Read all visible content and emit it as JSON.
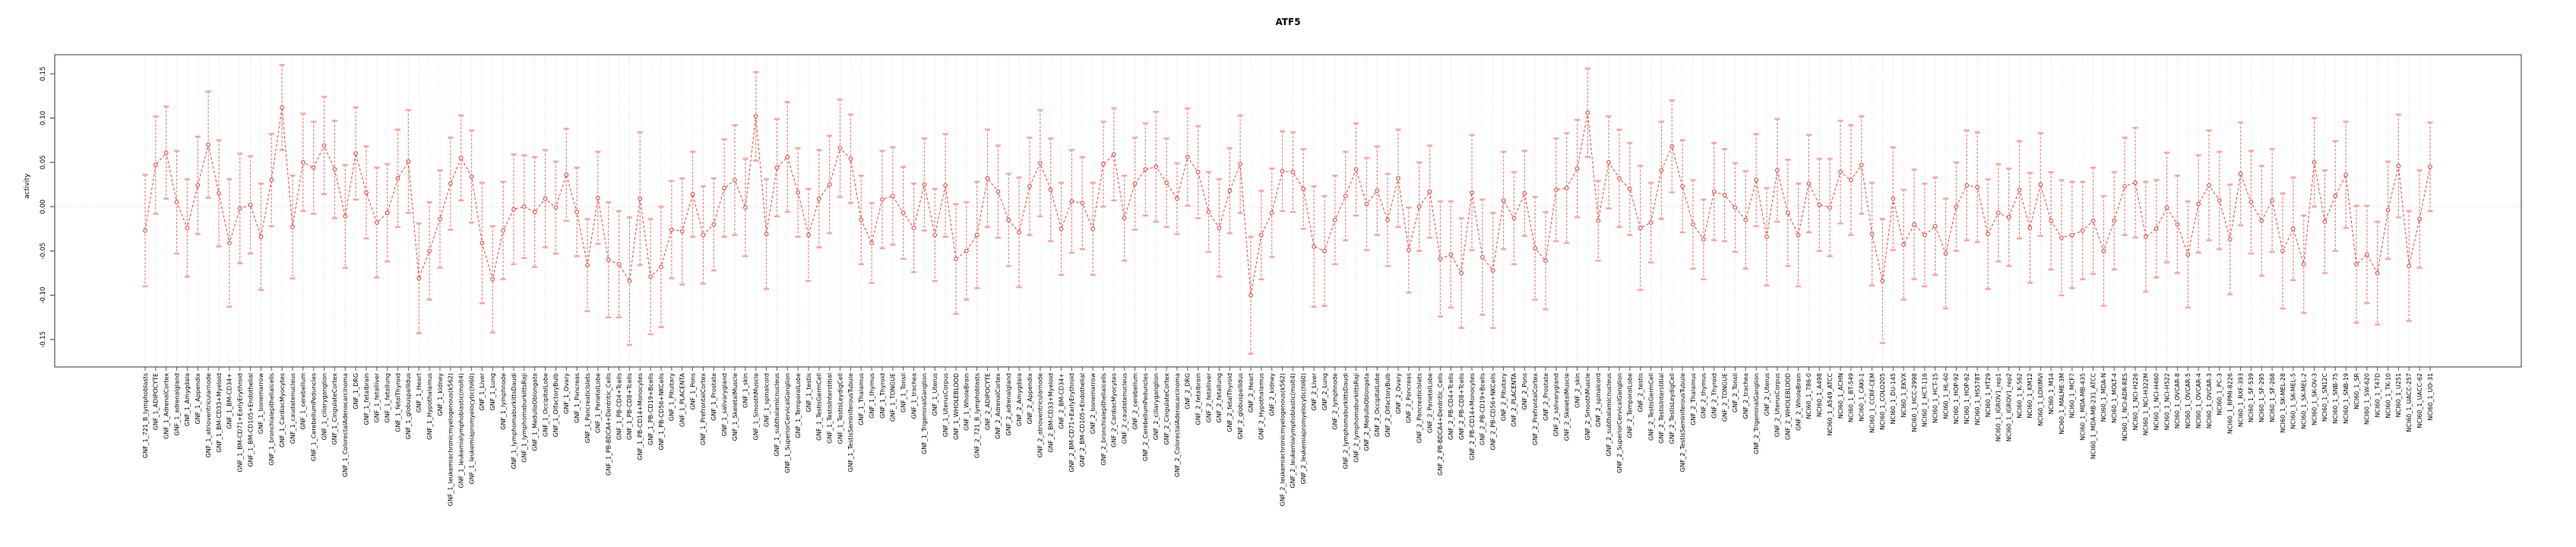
{
  "title": "ATF5",
  "colors": {
    "line": "#e8463c",
    "error_stem": "#f0837c",
    "error_cap": "#f4a7a3",
    "grid": "#d9d9d9",
    "zero_line": "#cccccc",
    "box": "#555555",
    "text": "#000000"
  },
  "chart_data": {
    "type": "line",
    "subtype": "errorbar-series",
    "title": "ATF5",
    "xlabel": "",
    "ylabel": "activity",
    "ylim": [
      -0.181,
      0.171
    ],
    "yticks": [
      0.15,
      0.1,
      0.05,
      0.0,
      -0.05,
      -0.1,
      -0.15
    ],
    "ytick_labels": [
      "0.15",
      "0.10",
      "0.05",
      "0.00",
      "-0.05",
      "-0.10",
      "-0.15"
    ],
    "grid": "vertical dotted gridline per sample; horizontal dotted line at 0",
    "legend": null,
    "marker": "open-circle",
    "line_style": "dashed",
    "categories": [
      "GNF_1_721_B_lymphoblasts",
      "GNF_1_ADIPOCYTE",
      "GNF_1_AdrenalCortex",
      "GNF_1_adrenalgland",
      "GNF_1_Amygdala",
      "GNF_1_Appendix",
      "GNF_1_atrioventricularnode",
      "GNF_1_BM-CD33+Myeloid",
      "GNF_1_BM-CD34+",
      "GNF_1_BM-CD71+EarlyErythroid",
      "GNF_1_BM-CD105+Endothelial",
      "GNF_1_bonemarrow",
      "GNF_1_bronchialepithelialcells",
      "GNF_1_CardiacMyocytes",
      "GNF_1_caudatenucleus",
      "GNF_1_cerebellum",
      "GNF_1_CerebellumPeduncles",
      "GNF_1_ciliaryganglion",
      "GNF_1_CingulateCortex",
      "GNF_1_ColorectalAdenocarcinoma",
      "GNF_1_DRG",
      "GNF_1_fetalbrain",
      "GNF_1_fetalliver",
      "GNF_1_fetallung",
      "GNF_1_fetalThyroid",
      "GNF_1_globuspallidus",
      "GNF_1_Heart",
      "GNF_1_Hypothalamus",
      "GNF_1_kidney",
      "GNF_1_leukemiachronicmyelogenous(k562)",
      "GNF_1_leukemialymphoblastic(molt4)",
      "GNF_1_leukemiapromyelocytic(hl60)",
      "GNF_1_Liver",
      "GNF_1_Lung",
      "GNF_1_lymphnode",
      "GNF_1_lymphomaburkittsDaudi",
      "GNF_1_lymphomaburkittsRaji",
      "GNF_1_MedullaOblongata",
      "GNF_1_OccipitalLobe",
      "GNF_1_OlfactoryBulb",
      "GNF_1_Ovary",
      "GNF_1_Pancreas",
      "GNF_1_PancreaticIslets",
      "GNF_1_ParietalLobe",
      "GNF_1_PB-BDCA4+Dentritic_Cells",
      "GNF_1_PB-CD4+Tcells",
      "GNF_1_PB-CD8+Tcells",
      "GNF_1_PB-CD14+Monocytes",
      "GNF_1_PB-CD19+Bcells",
      "GNF_1_PB-CD56+NKCells",
      "GNF_1_Pituitary",
      "GNF_1_PLACENTA",
      "GNF_1_Pons",
      "GNF_1_PrefrontalCortex",
      "GNF_1_Prostate",
      "GNF_1_salivarygland",
      "GNF_1_SkeletalMuscle",
      "GNF_1_skin",
      "GNF_1_SmoothMuscle",
      "GNF_1_spinalcord",
      "GNF_1_subthalamicnucleus",
      "GNF_1_SuperiorCervicalGanglion",
      "GNF_1_TemporalLobe",
      "GNF_1_testis",
      "GNF_1_TestisGermCell",
      "GNF_1_TestisInterstitial",
      "GNF_1_TestisLeydigCell",
      "GNF_1_TestisSeminiferousTubule",
      "GNF_1_Thalamus",
      "GNF_1_thymus",
      "GNF_1_Thyroid",
      "GNF_1_TONGUE",
      "GNF_1_Tonsil",
      "GNF_1_trachea",
      "GNF_1_TrigeminalGanglion",
      "GNF_1_Uterus",
      "GNF_1_UterusCorpus",
      "GNF_1_WHOLEBLOOD",
      "GNF_1_WholeBrain",
      "GNF_2_721_B_lymphoblasts",
      "GNF_2_ADIPOCYTE",
      "GNF_2_AdrenalCortex",
      "GNF_2_adrenalgland",
      "GNF_2_Amygdala",
      "GNF_2_Appendix",
      "GNF_2_atrioventricularnode",
      "GNF_2_BM-CD33+Myeloid",
      "GNF_2_BM-CD34+",
      "GNF_2_BM-CD71+EarlyErythroid",
      "GNF_2_BM-CD105+Endothelial",
      "GNF_2_bonemarrow",
      "GNF_2_bronchialepithelialcells",
      "GNF_2_CardiacMyocytes",
      "GNF_2_caudatenucleus",
      "GNF_2_cerebellum",
      "GNF_2_CerebellumPeduncles",
      "GNF_2_ciliaryganglion",
      "GNF_2_CingulateCortex",
      "GNF_2_ColorectalAdenocarcinoma",
      "GNF_2_DRG",
      "GNF_2_fetalbrain",
      "GNF_2_fetalliver",
      "GNF_2_fetallung",
      "GNF_2_fetalThyroid",
      "GNF_2_globuspallidus",
      "GNF_2_Heart",
      "GNF_2_Hypothalamus",
      "GNF_2_kidney",
      "GNF_2_leukemiachronicmyelogenous(k562)",
      "GNF_2_leukemialymphoblastic(molt4)",
      "GNF_2_leukemiapromyelocytic(hl60)",
      "GNF_2_Liver",
      "GNF_2_Lung",
      "GNF_2_lymphnode",
      "GNF_2_lymphomaburkittsDaudi",
      "GNF_2_lymphomaburkittsRaji",
      "GNF_2_MedullaOblongata",
      "GNF_2_OccipitalLobe",
      "GNF_2_OlfactoryBulb",
      "GNF_2_Ovary",
      "GNF_2_Pancreas",
      "GNF_2_PancreaticIslets",
      "GNF_2_ParietalLobe",
      "GNF_2_PB-BDCA4+Dentritic_Cells",
      "GNF_2_PB-CD4+Tcells",
      "GNF_2_PB-CD8+Tcells",
      "GNF_2_PB-CD14+Monocytes",
      "GNF_2_PB-CD19+Bcells",
      "GNF_2_PB-CD56+NKCells",
      "GNF_2_Pituitary",
      "GNF_2_PLACENTA",
      "GNF_2_Pons",
      "GNF_2_PrefrontalCortex",
      "GNF_2_Prostate",
      "GNF_2_salivarygland",
      "GNF_2_SkeletalMuscle",
      "GNF_2_skin",
      "GNF_2_SmoothMuscle",
      "GNF_2_spinalcord",
      "GNF_2_subthalamicnucleus",
      "GNF_2_SuperiorCervicalGanglion",
      "GNF_2_TemporalLobe",
      "GNF_2_testis",
      "GNF_2_TestisGermCell",
      "GNF_2_TestisInterstitial",
      "GNF_2_TestisLeydigCell",
      "GNF_2_TestisSeminiferousTubule",
      "GNF_2_Thalamus",
      "GNF_2_thymus",
      "GNF_2_Thyroid",
      "GNF_2_TONGUE",
      "GNF_2_Tonsil",
      "GNF_2_trachea",
      "GNF_2_TrigeminalGanglion",
      "GNF_2_Uterus",
      "GNF_2_UterusCorpus",
      "GNF_2_WHOLEBLOOD",
      "GNF_2_WholeBrain",
      "NCI60_1_786-0",
      "NCI60_1_A498",
      "NCI60_1_A549_ATCC",
      "NCI60_1_ACHN",
      "NCI60_1_BT-549",
      "NCI60_1_CAKI-1",
      "NCI60_1_CCRF-CEM",
      "NCI60_1_COLO205",
      "NCI60_1_DU-145",
      "NCI60_1_EKVX",
      "NCI60_1_HCC-2998",
      "NCI60_1_HCT-116",
      "NCI60_1_HCT-15",
      "NCI60_1_HL-60",
      "NCI60_1_HOP-92",
      "NCI60_1_HOP-62",
      "NCI60_1_HS578T",
      "NCI60_1_HT29",
      "NCI60_1_IGROV1_rep1",
      "NCI60_1_IGROV1_rep2",
      "NCI60_1_K-562",
      "NCI60_1_KM12",
      "NCI60_1_LOXIMVI",
      "NCI60_1_M14",
      "NCI60_1_MALME-3M",
      "NCI60_1_MCF7",
      "NCI60_1_MDA-MB-435",
      "NCI60_1_MDA-MB-231_ATCC",
      "NCI60_1_MDA-N",
      "NCI60_1_MOLT-4",
      "NCI60_1_NCI-ADR-RES",
      "NCI60_1_NCI-H226",
      "NCI60_1_NCI-H322M",
      "NCI60_1_NCI-H460",
      "NCI60_1_NCI-H522",
      "NCI60_1_OVCAR-8",
      "NCI60_1_OVCAR-5",
      "NCI60_1_OVCAR-4",
      "NCI60_1_OVCAR-3",
      "NCI60_1_PC-3",
      "NCI60_1_RPMI-8226",
      "NCI60_1_RXF-393",
      "NCI60_1_SF-539",
      "NCI60_1_SF-295",
      "NCI60_1_SF-268",
      "NCI60_1_SK-MEL-28",
      "NCI60_1_SK-MEL-5",
      "NCI60_1_SK-MEL-2",
      "NCI60_1_SK-OV-3",
      "NCI60_1_SN12C",
      "NCI60_1_SNB-75",
      "NCI60_1_SNB-19",
      "NCI60_1_SR",
      "NCI60_1_SW-620",
      "NCI60_1_T47D",
      "NCI60_1_TK-10",
      "NCI60_1_U251",
      "NCI60_1_UACC-257",
      "NCI60_1_UACC-62",
      "NCI60_1_UO-31"
    ],
    "values": [
      -0.027,
      0.047,
      0.061,
      0.005,
      -0.024,
      0.024,
      0.07,
      0.015,
      -0.041,
      -0.002,
      0.002,
      -0.034,
      0.03,
      0.112,
      -0.023,
      0.05,
      0.044,
      0.069,
      0.042,
      -0.011,
      0.06,
      0.016,
      -0.018,
      -0.007,
      0.032,
      0.051,
      -0.081,
      -0.05,
      -0.014,
      0.026,
      0.055,
      0.034,
      -0.041,
      -0.082,
      -0.027,
      -0.003,
      0.0,
      -0.006,
      0.009,
      -0.001,
      0.036,
      -0.006,
      -0.066,
      0.01,
      -0.06,
      -0.065,
      -0.084,
      0.009,
      -0.079,
      -0.068,
      -0.026,
      -0.028,
      0.014,
      -0.032,
      -0.02,
      0.021,
      0.03,
      -0.001,
      0.102,
      -0.031,
      0.044,
      0.056,
      0.016,
      -0.032,
      0.009,
      0.025,
      0.066,
      0.054,
      -0.015,
      -0.041,
      0.008,
      0.012,
      -0.007,
      -0.024,
      0.025,
      -0.032,
      0.024,
      -0.059,
      -0.05,
      -0.032,
      0.032,
      0.017,
      -0.015,
      -0.029,
      0.023,
      0.049,
      0.019,
      -0.025,
      0.006,
      0.004,
      -0.025,
      0.048,
      0.059,
      -0.013,
      0.026,
      0.042,
      0.045,
      0.027,
      0.009,
      0.056,
      0.039,
      -0.006,
      -0.024,
      0.018,
      0.048,
      -0.1,
      -0.032,
      -0.007,
      0.04,
      0.039,
      0.02,
      -0.045,
      -0.05,
      -0.015,
      0.012,
      0.042,
      0.003,
      0.018,
      -0.015,
      0.032,
      -0.049,
      0.0,
      0.017,
      -0.059,
      -0.054,
      -0.075,
      0.016,
      -0.057,
      -0.072,
      0.007,
      -0.013,
      0.015,
      -0.047,
      -0.061,
      0.019,
      0.021,
      0.043,
      0.106,
      -0.016,
      0.05,
      0.032,
      0.02,
      -0.024,
      -0.018,
      0.041,
      0.068,
      0.023,
      -0.02,
      -0.037,
      0.017,
      0.013,
      -0.001,
      -0.015,
      0.03,
      -0.034,
      0.041,
      -0.007,
      -0.032,
      0.026,
      0.002,
      -0.001,
      0.039,
      0.03,
      0.047,
      -0.031,
      -0.084,
      0.009,
      -0.043,
      -0.02,
      -0.032,
      -0.022,
      -0.053,
      0.0,
      0.024,
      0.022,
      -0.031,
      -0.007,
      -0.012,
      0.019,
      -0.024,
      0.025,
      -0.016,
      -0.035,
      -0.032,
      -0.027,
      -0.016,
      -0.05,
      -0.016,
      0.023,
      0.027,
      -0.034,
      -0.025,
      -0.001,
      -0.02,
      -0.054,
      0.003,
      0.024,
      0.007,
      -0.037,
      0.037,
      0.005,
      -0.016,
      0.007,
      -0.05,
      -0.025,
      -0.065,
      0.05,
      -0.017,
      0.012,
      0.036,
      -0.065,
      -0.054,
      -0.075,
      -0.004,
      0.046,
      -0.067,
      -0.014,
      0.045
    ],
    "errors": [
      0.063,
      0.055,
      0.052,
      0.058,
      0.055,
      0.055,
      0.06,
      0.06,
      0.072,
      0.062,
      0.055,
      0.06,
      0.052,
      0.048,
      0.058,
      0.055,
      0.052,
      0.055,
      0.055,
      0.058,
      0.052,
      0.052,
      0.062,
      0.055,
      0.055,
      0.058,
      0.062,
      0.055,
      0.055,
      0.052,
      0.048,
      0.052,
      0.068,
      0.06,
      0.055,
      0.062,
      0.058,
      0.062,
      0.055,
      0.052,
      0.052,
      0.05,
      0.052,
      0.052,
      0.065,
      0.06,
      0.072,
      0.075,
      0.065,
      0.068,
      0.055,
      0.06,
      0.048,
      0.055,
      0.052,
      0.055,
      0.062,
      0.055,
      0.05,
      0.062,
      0.055,
      0.062,
      0.05,
      0.052,
      0.055,
      0.055,
      0.055,
      0.05,
      0.05,
      0.045,
      0.055,
      0.055,
      0.052,
      0.05,
      0.052,
      0.052,
      0.058,
      0.062,
      0.055,
      0.06,
      0.055,
      0.052,
      0.052,
      0.062,
      0.055,
      0.06,
      0.058,
      0.052,
      0.058,
      0.052,
      0.052,
      0.048,
      0.052,
      0.048,
      0.052,
      0.052,
      0.062,
      0.05,
      0.04,
      0.055,
      0.052,
      0.045,
      0.055,
      0.048,
      0.055,
      0.066,
      0.05,
      0.05,
      0.045,
      0.045,
      0.045,
      0.068,
      0.062,
      0.05,
      0.05,
      0.052,
      0.052,
      0.05,
      0.052,
      0.055,
      0.048,
      0.05,
      0.052,
      0.065,
      0.06,
      0.062,
      0.065,
      0.065,
      0.065,
      0.055,
      0.052,
      0.048,
      0.058,
      0.055,
      0.058,
      0.062,
      0.055,
      0.05,
      0.045,
      0.052,
      0.055,
      0.052,
      0.07,
      0.045,
      0.055,
      0.052,
      0.052,
      0.05,
      0.045,
      0.055,
      0.052,
      0.05,
      0.055,
      0.052,
      0.055,
      0.058,
      0.06,
      0.058,
      0.055,
      0.052,
      0.055,
      0.058,
      0.062,
      0.055,
      0.058,
      0.07,
      0.058,
      0.062,
      0.062,
      0.058,
      0.055,
      0.062,
      0.05,
      0.062,
      0.062,
      0.062,
      0.055,
      0.055,
      0.055,
      0.062,
      0.058,
      0.055,
      0.065,
      0.06,
      0.055,
      0.06,
      0.062,
      0.055,
      0.055,
      0.062,
      0.062,
      0.055,
      0.062,
      0.055,
      0.06,
      0.055,
      0.062,
      0.055,
      0.062,
      0.058,
      0.058,
      0.062,
      0.058,
      0.065,
      0.058,
      0.055,
      0.05,
      0.058,
      0.062,
      0.06,
      0.066,
      0.055,
      0.058,
      0.055,
      0.058,
      0.062,
      0.055,
      0.05
    ]
  }
}
